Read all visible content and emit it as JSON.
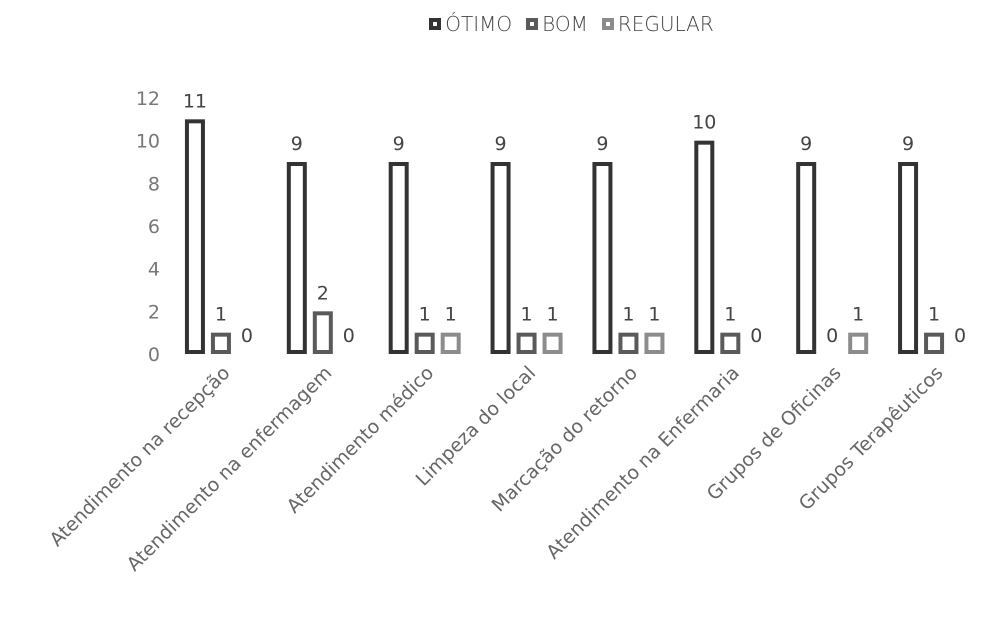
{
  "chart_data": {
    "type": "bar",
    "categories": [
      "Atendimento na recepção",
      "Atendimento na enfermagem",
      "Atendimento médico",
      "Limpeza do local",
      "Marcação do retorno",
      "Atendimento na Enfermaria",
      "Grupos de Oficinas",
      "Grupos Terapêuticos"
    ],
    "series": [
      {
        "name": "ÓTIMO",
        "values": [
          11,
          9,
          9,
          9,
          9,
          10,
          9,
          9
        ],
        "color": "#333333"
      },
      {
        "name": "BOM",
        "values": [
          1,
          2,
          1,
          1,
          1,
          1,
          0,
          1
        ],
        "color": "#5a5a5a"
      },
      {
        "name": "REGULAR",
        "values": [
          0,
          0,
          1,
          1,
          1,
          0,
          1,
          0
        ],
        "color": "#8c8c8c"
      }
    ],
    "title": "",
    "xlabel": "",
    "ylabel": "",
    "ylim": [
      0,
      12
    ],
    "yticks": [
      0,
      2,
      4,
      6,
      8,
      10,
      12
    ],
    "grid": false,
    "legend_position": "top"
  }
}
